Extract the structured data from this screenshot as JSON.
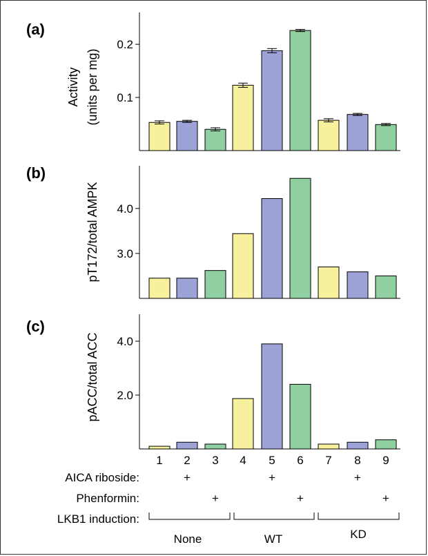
{
  "chart_data": [
    {
      "type": "bar",
      "panel": "(a)",
      "ylabel_line1": "Activity",
      "ylabel_line2": "(units per mg)",
      "categories": [
        "1",
        "2",
        "3",
        "4",
        "5",
        "6",
        "7",
        "8",
        "9"
      ],
      "values": [
        0.053,
        0.055,
        0.04,
        0.123,
        0.188,
        0.226,
        0.057,
        0.068,
        0.049
      ],
      "errors": [
        0.003,
        0.002,
        0.003,
        0.004,
        0.004,
        0.002,
        0.003,
        0.002,
        0.002
      ],
      "ylim": [
        0,
        0.26
      ],
      "yticks": [
        0.1,
        0.2
      ],
      "ytick_labels": [
        "0.1",
        "0.2"
      ]
    },
    {
      "type": "bar",
      "panel": "(b)",
      "ylabel": "pT172/total AMPK",
      "categories": [
        "1",
        "2",
        "3",
        "4",
        "5",
        "6",
        "7",
        "8",
        "9"
      ],
      "values": [
        2.45,
        2.45,
        2.62,
        3.44,
        4.22,
        4.67,
        2.7,
        2.59,
        2.5
      ],
      "ylim": [
        2.0,
        4.95
      ],
      "yticks": [
        3.0,
        4.0
      ],
      "ytick_labels": [
        "3.0",
        "4.0"
      ]
    },
    {
      "type": "bar",
      "panel": "(c)",
      "ylabel": "pACC/total ACC",
      "categories": [
        "1",
        "2",
        "3",
        "4",
        "5",
        "6",
        "7",
        "8",
        "9"
      ],
      "values": [
        0.1,
        0.25,
        0.18,
        1.87,
        3.9,
        2.4,
        0.18,
        0.25,
        0.34
      ],
      "ylim": [
        0,
        5.0
      ],
      "yticks": [
        2.0,
        4.0
      ],
      "ytick_labels": [
        "2.0",
        "4.0"
      ]
    }
  ],
  "bar_colors": [
    "#f7f09c",
    "#9da3d7",
    "#90cf9f"
  ],
  "lanes": [
    "1",
    "2",
    "3",
    "4",
    "5",
    "6",
    "7",
    "8",
    "9"
  ],
  "conditions": {
    "aica_label": "AICA riboside:",
    "aica_marks": [
      "",
      "+",
      "",
      "",
      "+",
      "",
      "",
      "+",
      ""
    ],
    "phenformin_label": "Phenformin:",
    "phenformin_marks": [
      "",
      "",
      "+",
      "",
      "",
      "+",
      "",
      "",
      "+"
    ],
    "lkb1_label": "LKB1 induction:",
    "groups": [
      "None",
      "WT",
      "KD"
    ]
  }
}
